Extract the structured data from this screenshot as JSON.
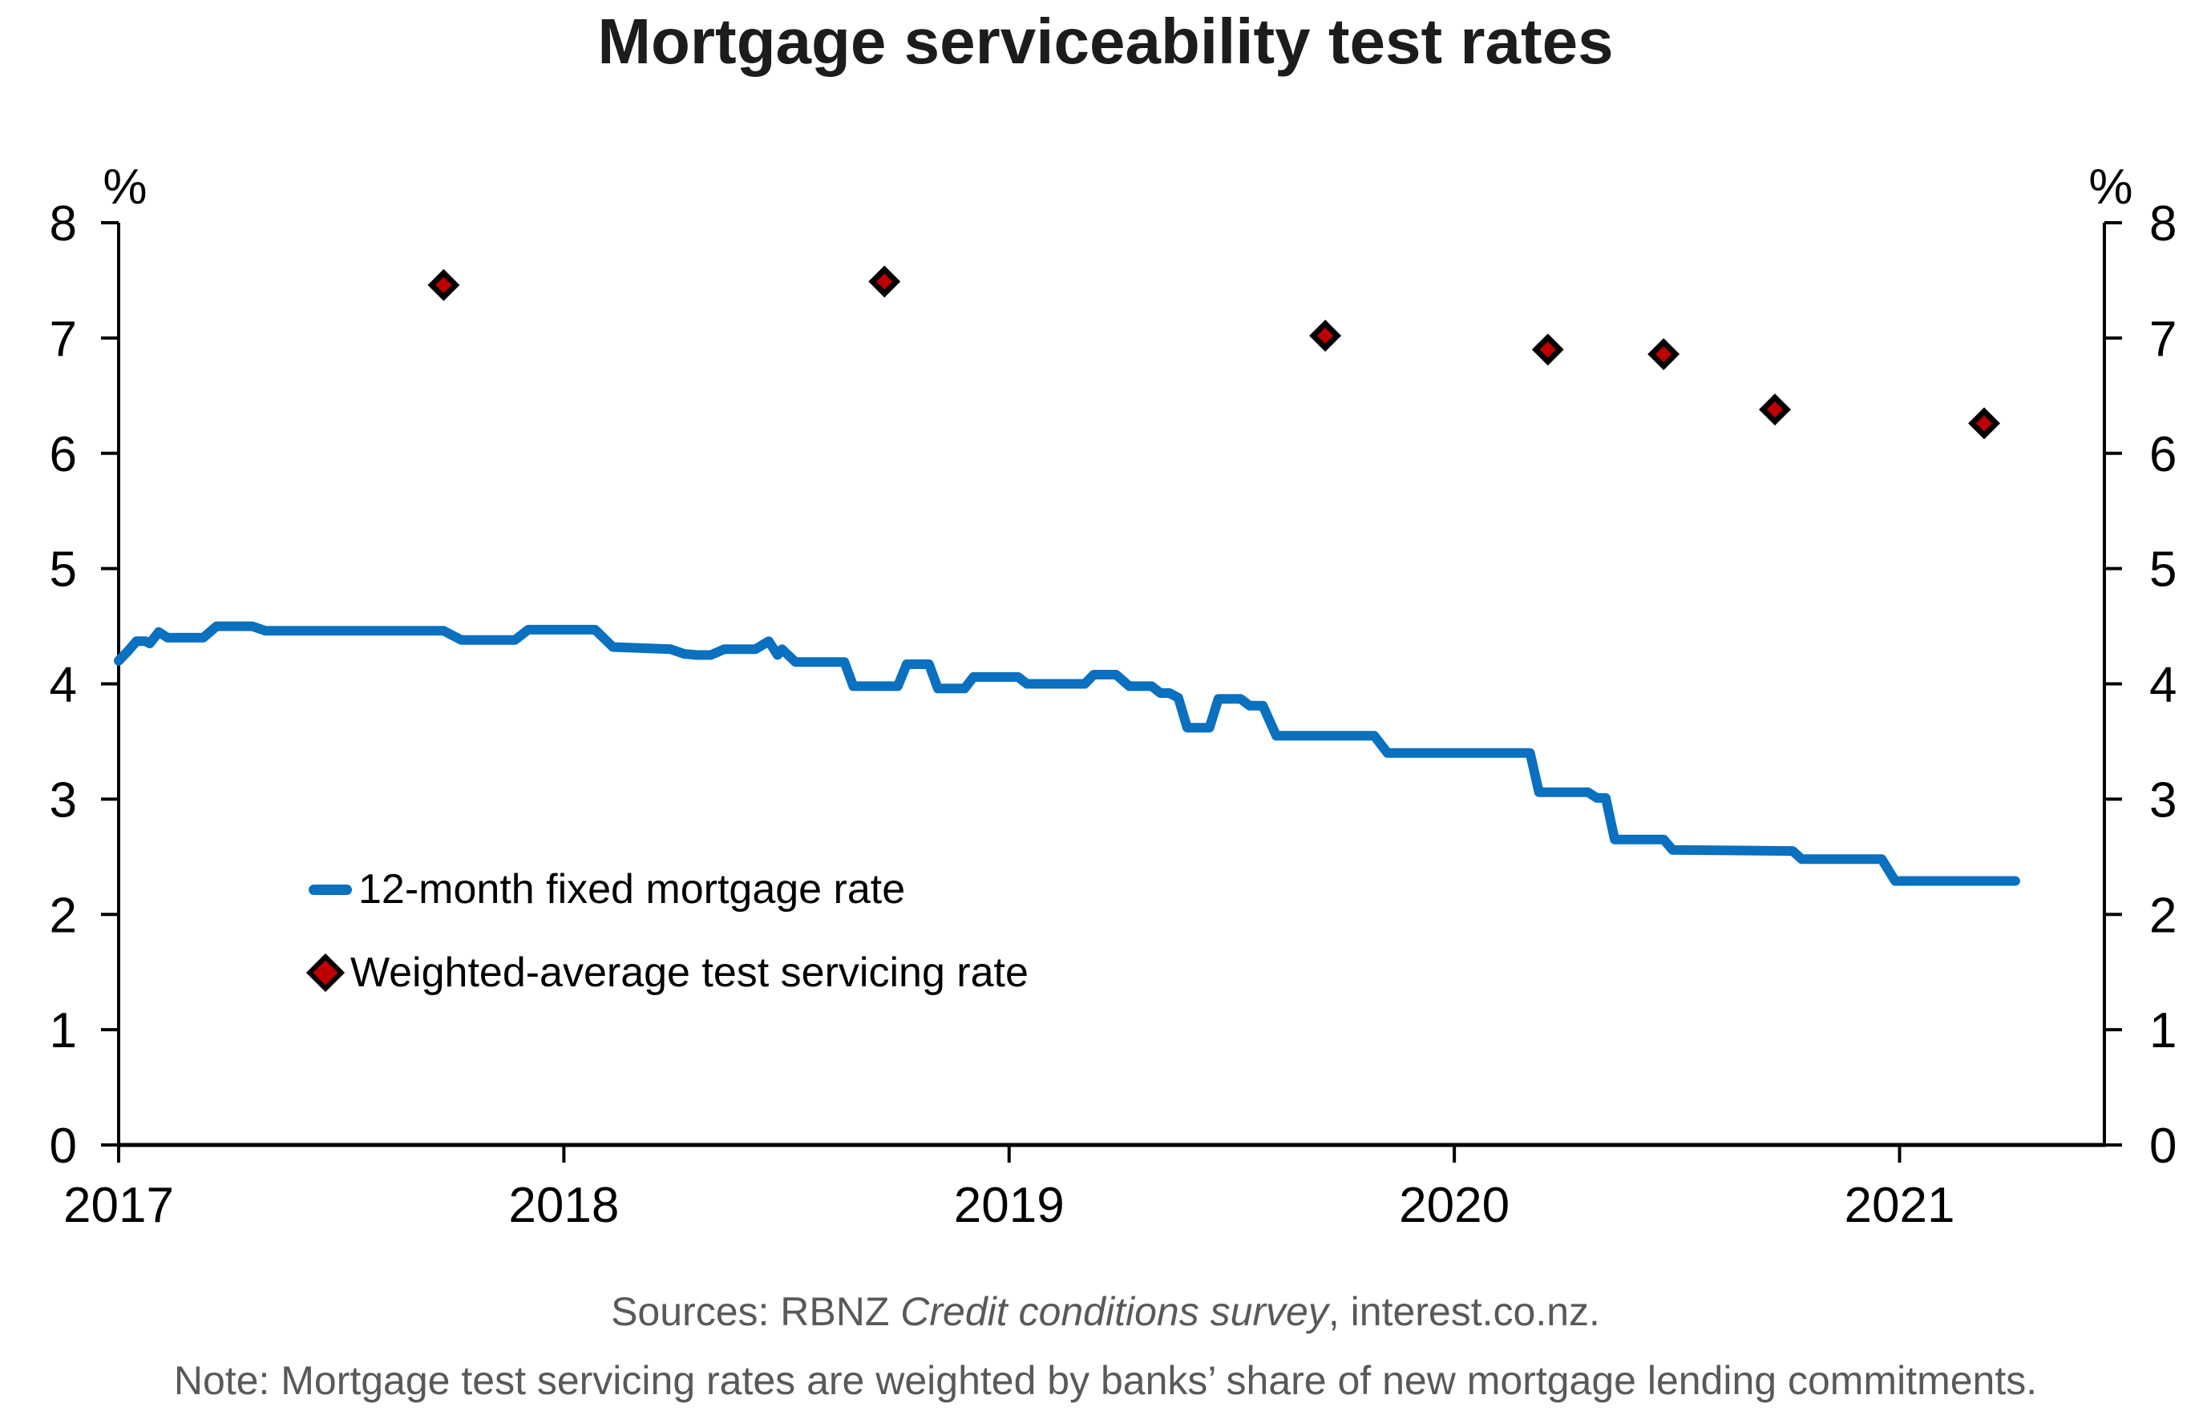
{
  "title": "Mortgage serviceability test rates",
  "footer": {
    "sources_prefix": "Sources: RBNZ ",
    "sources_italic": "Credit conditions survey",
    "sources_suffix": ", interest.co.nz.",
    "note": "Note: Mortgage test servicing rates are weighted by banks’ share of new mortgage lending commitments."
  },
  "chart_data": {
    "type": "line",
    "title": "Mortgage serviceability test rates",
    "x_axis": {
      "min": 2017,
      "max": 2021.46,
      "ticks": [
        2017,
        2018,
        2019,
        2020,
        2021
      ],
      "grid": false
    },
    "y_axis": {
      "min": 0,
      "max": 8,
      "ticks": [
        0,
        1,
        2,
        3,
        4,
        5,
        6,
        7,
        8
      ],
      "unit_left": "%",
      "unit_right": "%",
      "grid": false
    },
    "legend_position": "inside-left-middle",
    "series": [
      {
        "name": "12-month fixed mortgage rate",
        "type": "line",
        "color": "#0a70c0",
        "line_width": 12,
        "points": [
          [
            2017.0,
            4.2
          ],
          [
            2017.02,
            4.28
          ],
          [
            2017.04,
            4.37
          ],
          [
            2017.06,
            4.37
          ],
          [
            2017.07,
            4.35
          ],
          [
            2017.09,
            4.45
          ],
          [
            2017.11,
            4.4
          ],
          [
            2017.19,
            4.4
          ],
          [
            2017.22,
            4.5
          ],
          [
            2017.3,
            4.5
          ],
          [
            2017.33,
            4.46
          ],
          [
            2017.73,
            4.46
          ],
          [
            2017.77,
            4.38
          ],
          [
            2017.89,
            4.38
          ],
          [
            2017.92,
            4.47
          ],
          [
            2018.07,
            4.47
          ],
          [
            2018.11,
            4.32
          ],
          [
            2018.24,
            4.3
          ],
          [
            2018.27,
            4.26
          ],
          [
            2018.3,
            4.25
          ],
          [
            2018.33,
            4.25
          ],
          [
            2018.36,
            4.3
          ],
          [
            2018.43,
            4.3
          ],
          [
            2018.46,
            4.37
          ],
          [
            2018.48,
            4.25
          ],
          [
            2018.49,
            4.3
          ],
          [
            2018.52,
            4.19
          ],
          [
            2018.63,
            4.19
          ],
          [
            2018.65,
            3.98
          ],
          [
            2018.75,
            3.98
          ],
          [
            2018.77,
            4.17
          ],
          [
            2018.82,
            4.17
          ],
          [
            2018.84,
            3.96
          ],
          [
            2018.9,
            3.96
          ],
          [
            2018.92,
            4.06
          ],
          [
            2019.02,
            4.06
          ],
          [
            2019.04,
            4.0
          ],
          [
            2019.17,
            4.0
          ],
          [
            2019.19,
            4.08
          ],
          [
            2019.24,
            4.08
          ],
          [
            2019.27,
            3.98
          ],
          [
            2019.32,
            3.98
          ],
          [
            2019.34,
            3.92
          ],
          [
            2019.36,
            3.92
          ],
          [
            2019.38,
            3.88
          ],
          [
            2019.4,
            3.62
          ],
          [
            2019.45,
            3.62
          ],
          [
            2019.47,
            3.87
          ],
          [
            2019.52,
            3.87
          ],
          [
            2019.54,
            3.81
          ],
          [
            2019.57,
            3.81
          ],
          [
            2019.6,
            3.55
          ],
          [
            2019.82,
            3.55
          ],
          [
            2019.85,
            3.4
          ],
          [
            2020.17,
            3.4
          ],
          [
            2020.19,
            3.06
          ],
          [
            2020.3,
            3.06
          ],
          [
            2020.32,
            3.01
          ],
          [
            2020.34,
            3.01
          ],
          [
            2020.36,
            2.65
          ],
          [
            2020.47,
            2.65
          ],
          [
            2020.49,
            2.56
          ],
          [
            2020.76,
            2.55
          ],
          [
            2020.78,
            2.48
          ],
          [
            2020.96,
            2.48
          ],
          [
            2020.99,
            2.29
          ],
          [
            2021.26,
            2.29
          ]
        ]
      },
      {
        "name": "Weighted-average test servicing rate",
        "type": "scatter",
        "marker": "diamond",
        "fill": "#c00000",
        "stroke": "#000000",
        "points": [
          [
            2017.73,
            7.46
          ],
          [
            2018.72,
            7.49
          ],
          [
            2019.71,
            7.02
          ],
          [
            2020.21,
            6.9
          ],
          [
            2020.47,
            6.86
          ],
          [
            2020.72,
            6.38
          ],
          [
            2021.19,
            6.26
          ]
        ]
      }
    ]
  }
}
